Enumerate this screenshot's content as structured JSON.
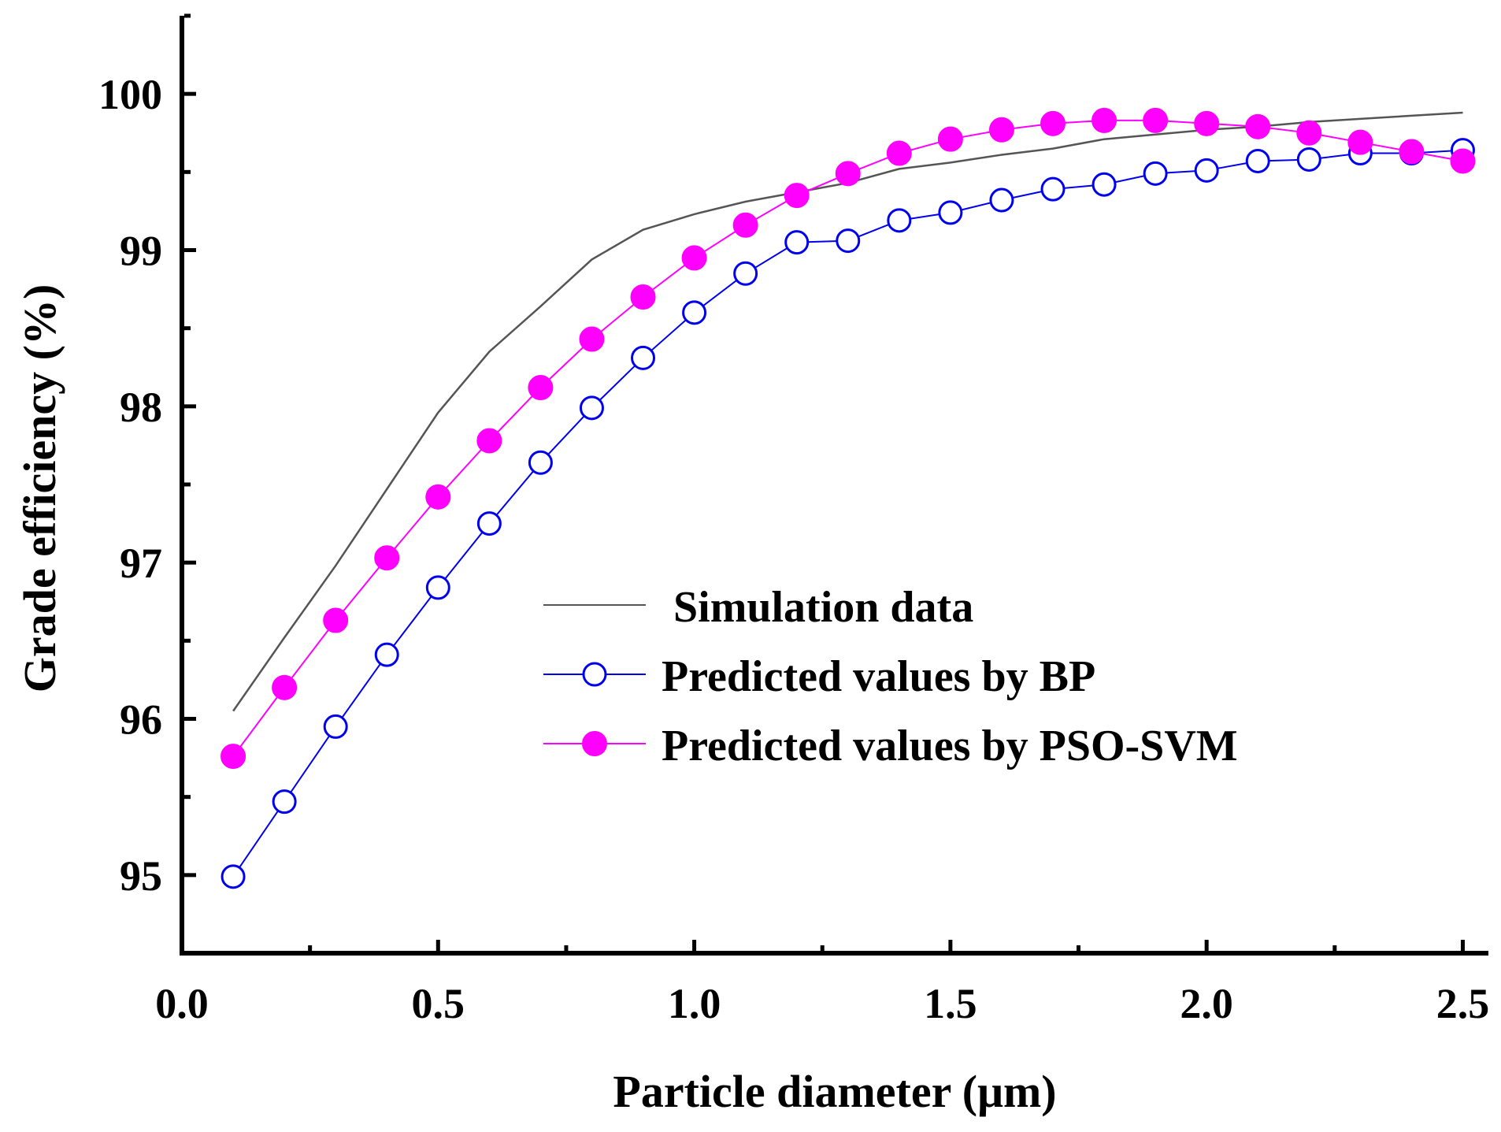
{
  "chart_data": {
    "type": "line",
    "title": "",
    "xlabel": "Particle diameter (μm)",
    "ylabel": "Grade efficiency (%)",
    "xlim": [
      0.0,
      2.55
    ],
    "ylim": [
      94.5,
      100.5
    ],
    "xticks": [
      {
        "value": 0.0,
        "label": "0.0"
      },
      {
        "value": 0.5,
        "label": "0.5"
      },
      {
        "value": 1.0,
        "label": "1.0"
      },
      {
        "value": 1.5,
        "label": "1.5"
      },
      {
        "value": 2.0,
        "label": "2.0"
      },
      {
        "value": 2.5,
        "label": "2.5"
      }
    ],
    "yticks": [
      {
        "value": 95,
        "label": "95"
      },
      {
        "value": 96,
        "label": "96"
      },
      {
        "value": 97,
        "label": "97"
      },
      {
        "value": 98,
        "label": "98"
      },
      {
        "value": 99,
        "label": "99"
      },
      {
        "value": 100,
        "label": "100"
      }
    ],
    "grid": false,
    "legend_position": "center-right",
    "x": [
      0.1,
      0.2,
      0.3,
      0.4,
      0.5,
      0.6,
      0.7,
      0.8,
      0.9,
      1.0,
      1.1,
      1.2,
      1.3,
      1.4,
      1.5,
      1.6,
      1.7,
      1.8,
      1.9,
      2.0,
      2.1,
      2.2,
      2.3,
      2.4,
      2.5
    ],
    "series": [
      {
        "name": "Simulation data",
        "style": "line",
        "color": "#555555",
        "values": [
          96.05,
          96.52,
          96.98,
          97.47,
          97.96,
          98.35,
          98.64,
          98.94,
          99.13,
          99.23,
          99.31,
          99.37,
          99.43,
          99.52,
          99.56,
          99.61,
          99.65,
          99.71,
          99.74,
          99.77,
          99.79,
          99.82,
          99.84,
          99.86,
          99.88
        ]
      },
      {
        "name": "Predicted values by BP",
        "style": "line-open-circle",
        "color": "#0000ee",
        "values": [
          94.99,
          95.47,
          95.95,
          96.41,
          96.84,
          97.25,
          97.64,
          97.99,
          98.31,
          98.6,
          98.85,
          99.05,
          99.06,
          99.19,
          99.24,
          99.32,
          99.39,
          99.42,
          99.49,
          99.51,
          99.57,
          99.58,
          99.62,
          99.62,
          99.64
        ]
      },
      {
        "name": "Predicted values by PSO-SVM",
        "style": "line-filled-circle",
        "color": "#ff00ff",
        "values": [
          95.76,
          96.2,
          96.63,
          97.03,
          97.42,
          97.78,
          98.12,
          98.43,
          98.7,
          98.95,
          99.16,
          99.35,
          99.49,
          99.62,
          99.71,
          99.77,
          99.81,
          99.83,
          99.83,
          99.81,
          99.79,
          99.75,
          99.69,
          99.63,
          99.57
        ]
      }
    ]
  }
}
